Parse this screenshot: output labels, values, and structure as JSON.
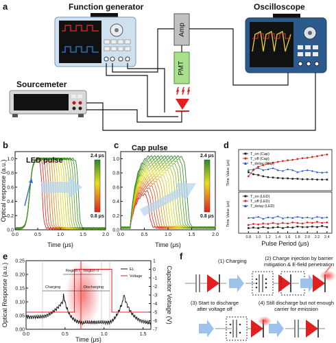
{
  "panel_a": {
    "label": "a",
    "function_generator": "Function generator",
    "oscilloscope": "Oscilloscope",
    "sourcemeter": "Sourcemeter",
    "amp": "Amp",
    "pmt": "PMT"
  },
  "panel_b": {
    "label": "b",
    "title": "LED pulse",
    "ylabel": "Optical response (a.u.)",
    "xlabel": "Time (μs)",
    "cb_top": "2.4 μs",
    "cb_bottom": "0.8 μs",
    "xticks": [
      "0.0",
      "0.5",
      "1.0",
      "1.5",
      "2.0"
    ],
    "yticks": [
      "0.0",
      "0.2",
      "0.4",
      "0.6",
      "0.8",
      "1.0"
    ]
  },
  "panel_c": {
    "label": "c",
    "title": "Cap pulse",
    "xlabel": "Time (μs)",
    "cb_top": "2.4 μs",
    "cb_bottom": "0.8 μs",
    "xticks": [
      "0.0",
      "0.5",
      "1.0",
      "1.5",
      "2.0"
    ],
    "yticks": [
      "0.0",
      "0.2",
      "0.4",
      "0.6",
      "0.8",
      "1.0"
    ]
  },
  "panel_d": {
    "label": "d",
    "xlabel": "Pulse Period (μs)",
    "ylabel": "Time Value (μs)",
    "legend_top": [
      "T_on (Cap)",
      "T_off (Cap)",
      "T_delay (Cap)"
    ],
    "legend_bottom": [
      "T_on (LED)",
      "T_off (LED)",
      "T_delay (LED)"
    ],
    "xticks": [
      "0.8",
      "1.0",
      "1.2",
      "1.4",
      "1.6",
      "1.8",
      "2.0",
      "2.2",
      "2.4"
    ]
  },
  "panel_e": {
    "label": "e",
    "ylabel": "Optical Response (a.u.)",
    "y2label": "Capacitor Voltage (V)",
    "xlabel": "Time (μs)",
    "region1": "Region I",
    "region2": "Region II",
    "charging": "Charging",
    "discharging": "Discharging",
    "legend": [
      "EL",
      "Voltage"
    ],
    "xticks": [
      "0.0",
      "0.5",
      "1.0",
      "1.5"
    ],
    "yticks": [
      "0.00",
      "0.05",
      "0.10",
      "0.15",
      "0.20",
      "0.25"
    ],
    "y2ticks": [
      "-7",
      "-6",
      "-5",
      "-4",
      "-3",
      "-2",
      "-1",
      "0",
      "1"
    ]
  },
  "panel_f": {
    "label": "f",
    "step1": "(1) Charging",
    "step2": "(2) Charge injection by barrier mitigation & E-field penetration",
    "step3": "(3) Start to discharge after voltage off",
    "step4": "(4) Still discharge but not enough carrier for emission"
  },
  "chart_data": [
    {
      "type": "line",
      "id": "b",
      "title": "LED pulse",
      "xlabel": "Time (μs)",
      "ylabel": "Optical response (a.u.)",
      "xlim": [
        0,
        2.0
      ],
      "ylim": [
        0,
        1.1
      ],
      "series_count": 17,
      "pulse_periods_range": [
        0.8,
        2.4
      ],
      "rise_time_start": 0.2,
      "plateau": 1.0
    },
    {
      "type": "line",
      "id": "c",
      "title": "Cap pulse",
      "xlabel": "Time (μs)",
      "xlim": [
        0,
        2.0
      ],
      "ylim": [
        0,
        1.1
      ],
      "series_count": 17,
      "pulse_periods_range": [
        0.8,
        2.4
      ]
    },
    {
      "type": "scatter",
      "id": "d",
      "xlabel": "Pulse Period (μs)",
      "x": [
        0.8,
        0.9,
        1.0,
        1.1,
        1.2,
        1.3,
        1.4,
        1.5,
        1.6,
        1.7,
        1.8,
        1.9,
        2.0,
        2.1,
        2.2,
        2.3,
        2.4
      ],
      "series_top": [
        {
          "name": "T_on (Cap)",
          "values": [
            0.45,
            0.4,
            0.38,
            0.35,
            0.33,
            0.32,
            0.31,
            0.3,
            0.3,
            0.29,
            0.29,
            0.28,
            0.28,
            0.28,
            0.27,
            0.27,
            0.27
          ],
          "color": "#222222"
        },
        {
          "name": "T_off (Cap)",
          "values": [
            0.35,
            0.5,
            0.58,
            0.62,
            0.66,
            0.68,
            0.7,
            0.72,
            0.74,
            0.75,
            0.77,
            0.79,
            0.8,
            0.82,
            0.84,
            0.86,
            0.88
          ],
          "color": "#e02020"
        },
        {
          "name": "T_delay (Cap)",
          "values": [
            0.5,
            0.52,
            0.55,
            0.5,
            0.52,
            0.55,
            0.5,
            0.48,
            0.52,
            0.5,
            0.45,
            0.48,
            0.5,
            0.48,
            0.45,
            0.44,
            0.45
          ],
          "color": "#2050d0"
        }
      ],
      "series_bottom": [
        {
          "name": "T_on (LED)",
          "values": [
            0.1,
            0.11,
            0.1,
            0.12,
            0.1,
            0.11,
            0.12,
            0.1,
            0.12,
            0.11,
            0.13,
            0.12,
            0.12,
            0.13,
            0.12,
            0.14,
            0.12
          ],
          "color": "#222222"
        },
        {
          "name": "T_off (LED)",
          "values": [
            0.16,
            0.18,
            0.17,
            0.19,
            0.18,
            0.2,
            0.18,
            0.2,
            0.19,
            0.21,
            0.2,
            0.19,
            0.21,
            0.2,
            0.22,
            0.2,
            0.21
          ],
          "color": "#e02020"
        },
        {
          "name": "T_delay (LED)",
          "values": [
            0.3,
            0.3,
            0.32,
            0.28,
            0.31,
            0.3,
            0.33,
            0.29,
            0.31,
            0.3,
            0.32,
            0.3,
            0.31,
            0.29,
            0.32,
            0.3,
            0.31
          ],
          "color": "#2050d0"
        }
      ]
    },
    {
      "type": "line",
      "id": "e",
      "xlabel": "Time (μs)",
      "ylabel": "Optical Response (a.u.)",
      "y2label": "Capacitor Voltage (V)",
      "xlim": [
        0,
        1.6
      ],
      "ylim": [
        0,
        0.25
      ],
      "y2lim": [
        -7,
        1
      ],
      "series": [
        {
          "name": "EL",
          "color": "#111111"
        },
        {
          "name": "Voltage",
          "color": "#e02020",
          "x": [
            0,
            0.62,
            0.62,
            1.1,
            1.1,
            1.6
          ],
          "values": [
            -5,
            -5,
            0,
            0,
            -5,
            -5
          ]
        }
      ]
    }
  ]
}
